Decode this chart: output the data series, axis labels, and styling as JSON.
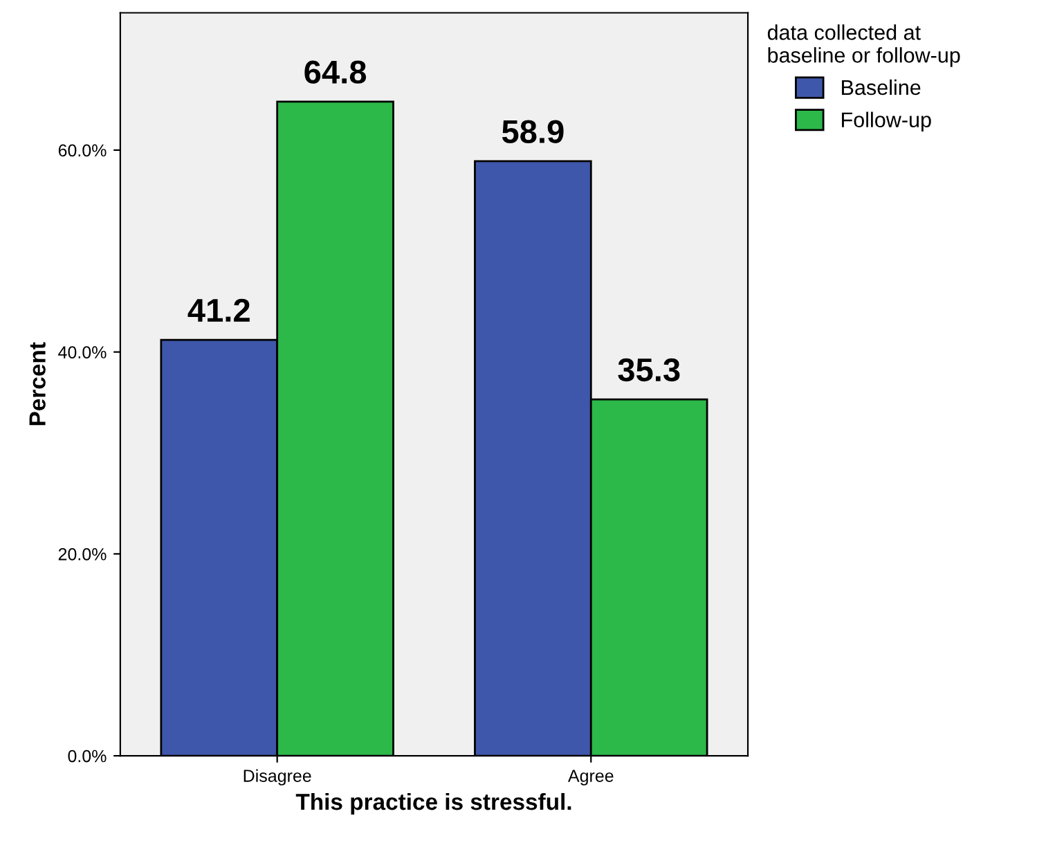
{
  "chart_data": {
    "type": "bar",
    "xlabel": "This practice is stressful.",
    "ylabel": "Percent",
    "legend_title": "data collected at\nbaseline or follow-up",
    "categories": [
      "Disagree",
      "Agree"
    ],
    "series": [
      {
        "name": "Baseline",
        "color": "#3e57ab",
        "values": [
          41.2,
          58.9
        ]
      },
      {
        "name": "Follow-up",
        "color": "#2db84a",
        "values": [
          64.8,
          35.3
        ]
      }
    ],
    "ylim": [
      0,
      73.6
    ],
    "yticks": [
      {
        "value": 0,
        "label": "0.0%"
      },
      {
        "value": 20,
        "label": "20.0%"
      },
      {
        "value": 40,
        "label": "40.0%"
      },
      {
        "value": 60,
        "label": "60.0%"
      }
    ],
    "data_labels": true,
    "legend": "top right",
    "grid": false
  }
}
